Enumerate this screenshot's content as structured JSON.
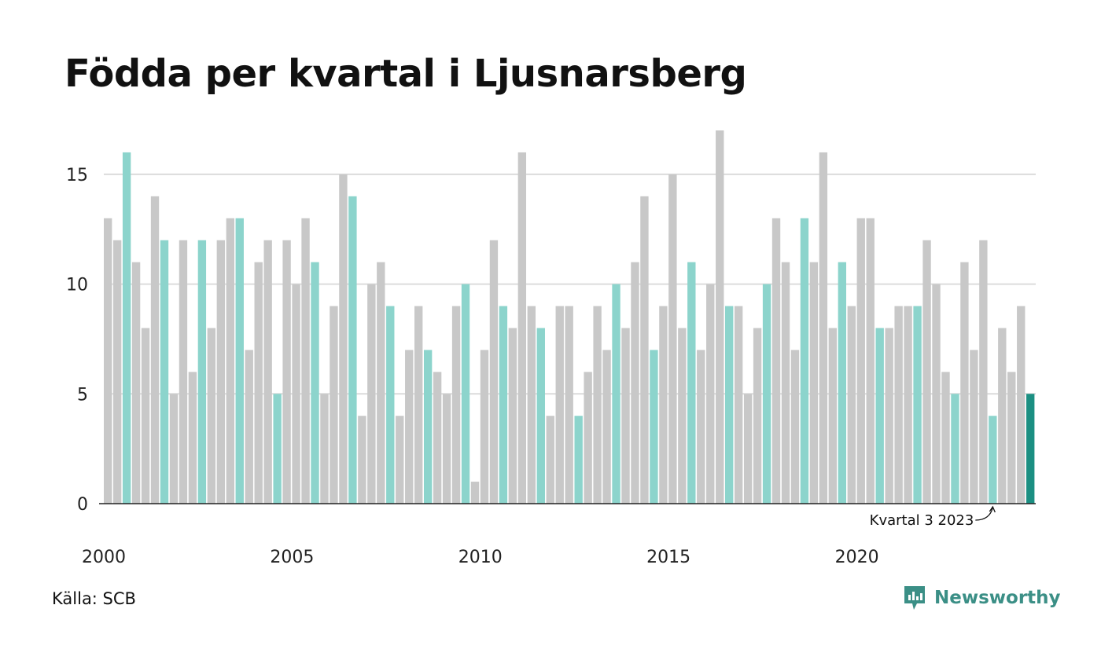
{
  "title": "Födda per kvartal i Ljusnarsberg",
  "source": "Källa: SCB",
  "brand": "Newsworthy",
  "colors": {
    "bar_default": "#c8c8c8",
    "bar_q3": "#8cd4cc",
    "bar_latest": "#1b8f82",
    "gridline": "#dcdcdc",
    "axis": "#222222",
    "brand": "#3b8f86"
  },
  "chart_data": {
    "type": "bar",
    "x_start": 2000,
    "ylim": [
      0,
      17
    ],
    "y_ticks": [
      0,
      5,
      10,
      15
    ],
    "x_ticks": [
      "2000",
      "2005",
      "2010",
      "2015",
      "2020"
    ],
    "highlight_quarter": 3,
    "grid": true,
    "annotation": "Kvartal 3 2023",
    "values": [
      13,
      12,
      16,
      11,
      8,
      14,
      12,
      5,
      12,
      6,
      12,
      8,
      12,
      13,
      13,
      7,
      11,
      12,
      5,
      12,
      10,
      13,
      11,
      5,
      9,
      15,
      14,
      4,
      10,
      11,
      9,
      4,
      7,
      9,
      7,
      6,
      5,
      9,
      10,
      1,
      7,
      12,
      9,
      8,
      16,
      9,
      8,
      4,
      9,
      9,
      4,
      6,
      9,
      7,
      10,
      8,
      11,
      14,
      7,
      9,
      15,
      8,
      11,
      7,
      10,
      17,
      9,
      9,
      5,
      8,
      10,
      13,
      11,
      7,
      13,
      11,
      16,
      8,
      11,
      9,
      13,
      13,
      8,
      8,
      9,
      9,
      9,
      12,
      10,
      6,
      5,
      11,
      7,
      12,
      4,
      8,
      6,
      9,
      5
    ]
  }
}
